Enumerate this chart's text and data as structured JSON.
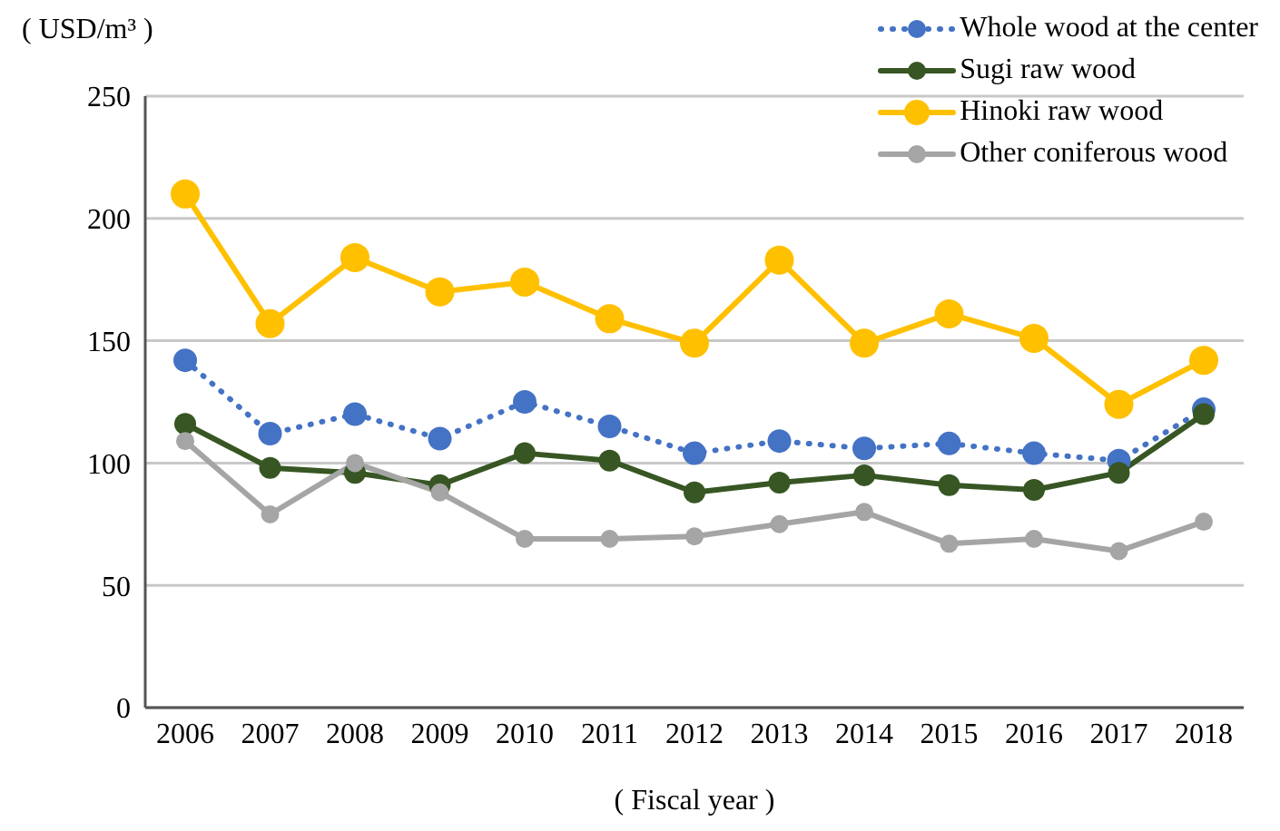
{
  "chart_data": {
    "type": "line",
    "xlabel": "( Fiscal year )",
    "ylabel": "( USD/m³ )",
    "categories": [
      "2006",
      "2007",
      "2008",
      "2009",
      "2010",
      "2011",
      "2012",
      "2013",
      "2014",
      "2015",
      "2016",
      "2017",
      "2018"
    ],
    "series": [
      {
        "name": "Whole wood at the center",
        "color": "#4472c4",
        "line_style": "dotted",
        "values": [
          142,
          112,
          120,
          110,
          125,
          115,
          104,
          109,
          106,
          108,
          104,
          101,
          122
        ]
      },
      {
        "name": "Sugi raw wood",
        "color": "#375623",
        "line_style": "solid",
        "values": [
          116,
          98,
          96,
          91,
          104,
          101,
          88,
          92,
          95,
          91,
          89,
          96,
          120
        ]
      },
      {
        "name": "Hinoki raw wood",
        "color": "#ffc000",
        "line_style": "solid",
        "values": [
          210,
          157,
          184,
          170,
          174,
          159,
          149,
          183,
          149,
          161,
          151,
          124,
          142
        ]
      },
      {
        "name": "Other coniferous wood",
        "color": "#a5a5a5",
        "line_style": "solid",
        "values": [
          109,
          79,
          100,
          88,
          69,
          69,
          70,
          75,
          80,
          67,
          69,
          64,
          76
        ]
      }
    ],
    "ylim": [
      0,
      250
    ],
    "yticks": [
      0,
      50,
      100,
      150,
      200,
      250
    ],
    "grid": "y",
    "legend": "top right",
    "marker": "circle"
  }
}
